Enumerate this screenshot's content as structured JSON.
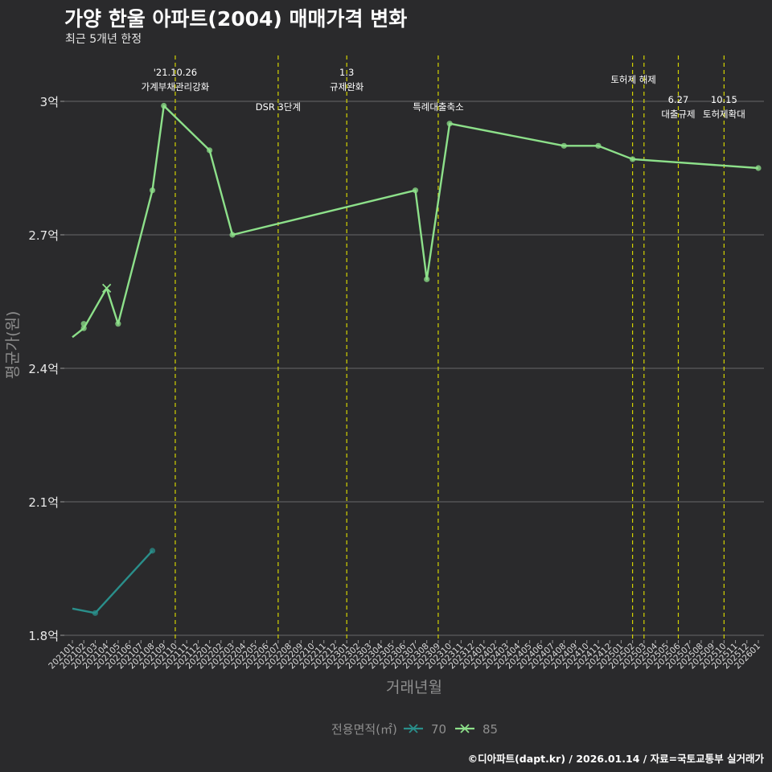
{
  "chart_data": {
    "type": "line",
    "title": "가양 한울 아파트(2004) 매매가격 변화",
    "subtitle": "최근 5개년 한정",
    "xlabel": "거래년월",
    "ylabel": "평균가(원)",
    "caption": "©디아파트(dapt.kr) / 2026.01.14 / 자료=국토교통부 실거래가",
    "legend_title": "전용면적(㎡)",
    "legend_position": "bottom",
    "x_categories": [
      "202101",
      "202102",
      "202103",
      "202104",
      "202105",
      "202106",
      "202107",
      "202108",
      "202109",
      "202110",
      "202111",
      "202112",
      "202201",
      "202202",
      "202203",
      "202204",
      "202205",
      "202206",
      "202207",
      "202208",
      "202209",
      "202210",
      "202211",
      "202212",
      "202301",
      "202302",
      "202303",
      "202304",
      "202305",
      "202306",
      "202307",
      "202308",
      "202309",
      "202310",
      "202311",
      "202312",
      "202401",
      "202402",
      "202403",
      "202404",
      "202405",
      "202406",
      "202407",
      "202408",
      "202409",
      "202410",
      "202411",
      "202412",
      "202501",
      "202502",
      "202503",
      "202504",
      "202505",
      "202506",
      "202507",
      "202508",
      "202509",
      "202510",
      "202511",
      "202512",
      "202601"
    ],
    "y_ticks": [
      {
        "value": 1.8,
        "label": "1.8억"
      },
      {
        "value": 2.1,
        "label": "2.1억"
      },
      {
        "value": 2.4,
        "label": "2.4억"
      },
      {
        "value": 2.7,
        "label": "2.7억"
      },
      {
        "value": 3.0,
        "label": "3억"
      }
    ],
    "ylim": [
      1.8,
      3.15
    ],
    "grid": true,
    "series": [
      {
        "name": "70",
        "color": "#2a8f8b",
        "line": [
          [
            "202101",
            1.86
          ],
          [
            "202103",
            1.85
          ],
          [
            "202108",
            1.99
          ]
        ],
        "points": [
          [
            "202103",
            1.85
          ],
          [
            "202108",
            1.99
          ]
        ],
        "crosses": []
      },
      {
        "name": "85",
        "color": "#8de08a",
        "line": [
          [
            "202101",
            2.47
          ],
          [
            "202102",
            2.49
          ],
          [
            "202104",
            2.58
          ],
          [
            "202105",
            2.5
          ],
          [
            "202108",
            2.8
          ],
          [
            "202109",
            2.99
          ],
          [
            "202201",
            2.89
          ],
          [
            "202203",
            2.7
          ],
          [
            "202307",
            2.8
          ],
          [
            "202308",
            2.6
          ],
          [
            "202310",
            2.95
          ],
          [
            "202408",
            2.9
          ],
          [
            "202411",
            2.9
          ],
          [
            "202502",
            2.87
          ],
          [
            "202601",
            2.85
          ]
        ],
        "points": [
          [
            "202102",
            2.49
          ],
          [
            "202102",
            2.5
          ],
          [
            "202105",
            2.5
          ],
          [
            "202108",
            2.8
          ],
          [
            "202109",
            2.99
          ],
          [
            "202201",
            2.89
          ],
          [
            "202203",
            2.7
          ],
          [
            "202307",
            2.8
          ],
          [
            "202308",
            2.6
          ],
          [
            "202310",
            2.95
          ],
          [
            "202408",
            2.9
          ],
          [
            "202411",
            2.9
          ],
          [
            "202502",
            2.87
          ],
          [
            "202601",
            2.85
          ]
        ],
        "crosses": [
          [
            "202104",
            2.58
          ]
        ]
      }
    ],
    "events": [
      {
        "x": "202110",
        "lines": [
          "'21.10.26",
          "가계부채관리강화"
        ],
        "row": "top"
      },
      {
        "x": "202207",
        "lines": [
          "DSR 3단계"
        ],
        "row": "low"
      },
      {
        "x": "202301",
        "lines": [
          "1.3",
          "규제완화"
        ],
        "row": "top"
      },
      {
        "x": "202309",
        "lines": [
          "특례대출축소"
        ],
        "row": "low"
      },
      {
        "x": "202502",
        "lines": [
          "토허제 해제"
        ],
        "row": "mid"
      },
      {
        "x": "202503",
        "lines": [],
        "row": "mid"
      },
      {
        "x": "202506",
        "lines": [
          "6.27",
          "대출규제"
        ],
        "row": "lowpair"
      },
      {
        "x": "202510",
        "lines": [
          "10.15",
          "토허제확대"
        ],
        "row": "lowpair"
      }
    ]
  }
}
